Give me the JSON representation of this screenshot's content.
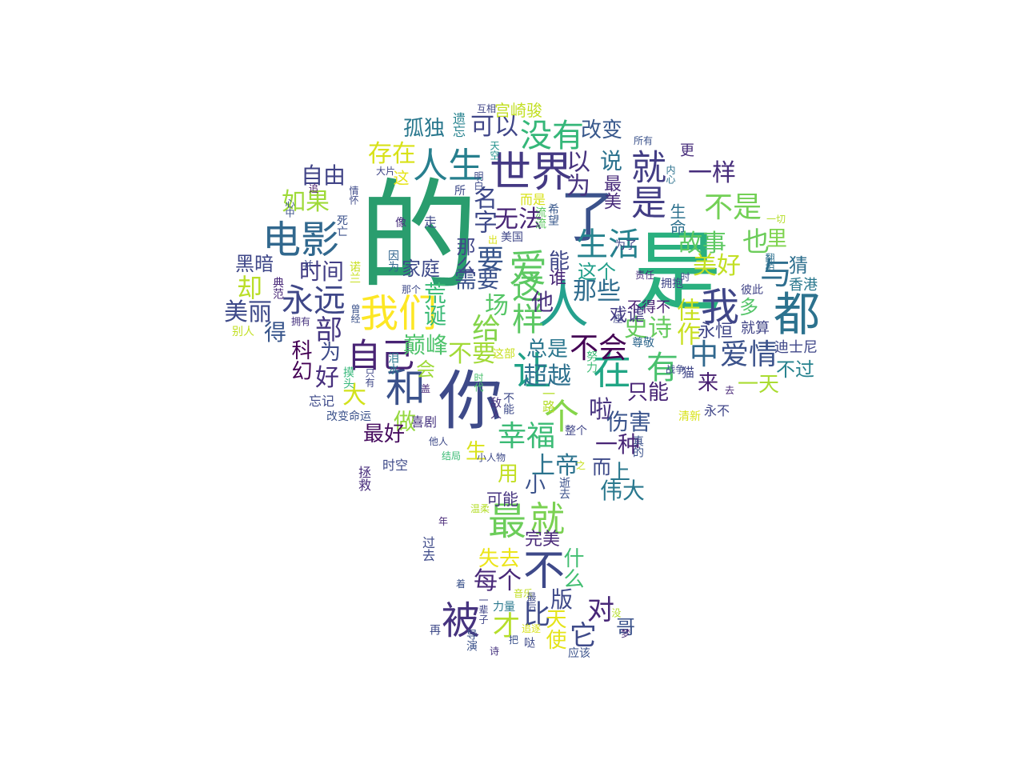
{
  "colors": {
    "background": "#ffffff"
  },
  "words": [
    {
      "t": "的",
      "c": "#2a9d6e"
    },
    {
      "t": "是",
      "c": "#2ab07f"
    },
    {
      "t": "你",
      "c": "#3e4a89"
    },
    {
      "t": "世界",
      "c": "#443983"
    },
    {
      "t": "人",
      "c": "#25a18e"
    },
    {
      "t": "我们",
      "c": "#fde725"
    },
    {
      "t": "电影",
      "c": "#31688e"
    },
    {
      "t": "都",
      "c": "#2c728e"
    },
    {
      "t": "我",
      "c": "#404688"
    },
    {
      "t": "在",
      "c": "#21a685"
    },
    {
      "t": "和",
      "c": "#3b528b"
    },
    {
      "t": "让",
      "c": "#1fa187"
    },
    {
      "t": "不",
      "c": "#3e4989"
    },
    {
      "t": "被",
      "c": "#46337f"
    },
    {
      "t": "人生",
      "c": "#277f8e"
    },
    {
      "t": "就是",
      "c": "#433e85"
    },
    {
      "t": "自己",
      "c": "#482374"
    },
    {
      "t": "永远",
      "c": "#3f4788"
    },
    {
      "t": "爱",
      "c": "#5ec962"
    },
    {
      "t": "最",
      "c": "#6ccd5a"
    },
    {
      "t": "没有",
      "c": "#35b779"
    },
    {
      "t": "了",
      "c": "#3b528b"
    },
    {
      "t": "生活",
      "c": "#26828e"
    },
    {
      "t": "与",
      "c": "#2e6e8e"
    },
    {
      "t": "这样",
      "c": "#5cc863"
    },
    {
      "t": "有",
      "c": "#4ac16d"
    },
    {
      "t": "不会",
      "c": "#440154"
    },
    {
      "t": "中",
      "c": "#31688e"
    },
    {
      "t": "爱情",
      "c": "#3b528b"
    },
    {
      "t": "幸福",
      "c": "#3bbb75"
    },
    {
      "t": "个",
      "c": "#85d54a"
    },
    {
      "t": "就",
      "c": "#7ad151"
    },
    {
      "t": "比",
      "c": "#3e4a89"
    },
    {
      "t": "对",
      "c": "#482878"
    },
    {
      "t": "它",
      "c": "#3e4a89"
    },
    {
      "t": "才",
      "c": "#b5de2b"
    },
    {
      "t": "每个",
      "c": "#482878"
    },
    {
      "t": "故事",
      "c": "#5ec962"
    },
    {
      "t": "也",
      "c": "#6ccd5a"
    },
    {
      "t": "不是",
      "c": "#73d056"
    },
    {
      "t": "一样",
      "c": "#472d7b"
    },
    {
      "t": "可以",
      "c": "#404688"
    },
    {
      "t": "改变",
      "c": "#38588c"
    },
    {
      "t": "孤独",
      "c": "#2a788e"
    },
    {
      "t": "存在",
      "c": "#d8e219"
    },
    {
      "t": "自由",
      "c": "#414487"
    },
    {
      "t": "如果",
      "c": "#9fda3a"
    },
    {
      "t": "无法",
      "c": "#482576"
    },
    {
      "t": "名字",
      "c": "#3e4989"
    },
    {
      "t": "以为",
      "c": "#46327e"
    },
    {
      "t": "说",
      "c": "#2c728e"
    },
    {
      "t": "要",
      "c": "#39568c"
    },
    {
      "t": "能",
      "c": "#3f4788"
    },
    {
      "t": "谁",
      "c": "#482677"
    },
    {
      "t": "他",
      "c": "#472e7c"
    },
    {
      "t": "那些",
      "c": "#2f6c8e"
    },
    {
      "t": "这个",
      "c": "#1f9e89"
    },
    {
      "t": "时间",
      "c": "#433e85"
    },
    {
      "t": "黑暗",
      "c": "#3f4788"
    },
    {
      "t": "家庭",
      "c": "#3e4a89"
    },
    {
      "t": "需要",
      "c": "#3b528b"
    },
    {
      "t": "那么",
      "c": "#404688"
    },
    {
      "t": "美好",
      "c": "#c2df23"
    },
    {
      "t": "猜",
      "c": "#2e6f8e"
    },
    {
      "t": "美丽",
      "c": "#3e4a89"
    },
    {
      "t": "却",
      "c": "#bade28"
    },
    {
      "t": "部",
      "c": "#453882"
    },
    {
      "t": "场",
      "c": "#56c667"
    },
    {
      "t": "给",
      "c": "#84d44b"
    },
    {
      "t": "史诗",
      "c": "#65cb5e"
    },
    {
      "t": "佳作",
      "c": "#c8e020"
    },
    {
      "t": "永恒",
      "c": "#404688"
    },
    {
      "t": "巅峰",
      "c": "#4ec36b"
    },
    {
      "t": "荒诞",
      "c": "#3aba76"
    },
    {
      "t": "不要",
      "c": "#a2da37"
    },
    {
      "t": "总是",
      "c": "#2a768e"
    },
    {
      "t": "戏谑",
      "c": "#443a83"
    },
    {
      "t": "不得不",
      "c": "#482173"
    },
    {
      "t": "为",
      "c": "#3e4c8a"
    },
    {
      "t": "好",
      "c": "#472f7d"
    },
    {
      "t": "大",
      "c": "#d2e21b"
    },
    {
      "t": "科幻",
      "c": "#440154"
    },
    {
      "t": "得",
      "c": "#39568c"
    },
    {
      "t": "超越",
      "c": "#2d708e"
    },
    {
      "t": "来",
      "c": "#482071"
    },
    {
      "t": "一天",
      "c": "#aadc32"
    },
    {
      "t": "不过",
      "c": "#26828e"
    },
    {
      "t": "只能",
      "c": "#482475"
    },
    {
      "t": "啦",
      "c": "#46327e"
    },
    {
      "t": "伤害",
      "c": "#3a548c"
    },
    {
      "t": "一种",
      "c": "#482576"
    },
    {
      "t": "上帝",
      "c": "#2c738e"
    },
    {
      "t": "伟大",
      "c": "#2a788e"
    },
    {
      "t": "生",
      "c": "#dae319"
    },
    {
      "t": "做",
      "c": "#95d840"
    },
    {
      "t": "最好",
      "c": "#460b5e"
    },
    {
      "t": "失去",
      "c": "#ece51b"
    },
    {
      "t": "完美",
      "c": "#482878"
    },
    {
      "t": "什么",
      "c": "#42be71"
    },
    {
      "t": "版",
      "c": "#3e4989"
    },
    {
      "t": "天使",
      "c": "#e5e419"
    },
    {
      "t": "哥",
      "c": "#3b528b"
    },
    {
      "t": "可能",
      "c": "#46337f"
    },
    {
      "t": "多",
      "c": "#54c568"
    },
    {
      "t": "就算",
      "c": "#414487"
    },
    {
      "t": "迪士尼",
      "c": "#3f4788"
    },
    {
      "t": "香港",
      "c": "#2a788e"
    },
    {
      "t": "里",
      "c": "#7fd34e"
    },
    {
      "t": "生命",
      "c": "#2d718e"
    },
    {
      "t": "最美",
      "c": "#472a7a"
    },
    {
      "t": "宫崎骏",
      "c": "#c2df23"
    },
    {
      "t": "天空",
      "c": "#21918c"
    },
    {
      "t": "所有",
      "c": "#3b528b"
    },
    {
      "t": "更",
      "c": "#472d7b"
    },
    {
      "t": "内心",
      "c": "#2c728e"
    },
    {
      "t": "一切",
      "c": "#b5de2b"
    },
    {
      "t": "互相",
      "c": "#404688"
    },
    {
      "t": "遗忘",
      "c": "#26828e"
    },
    {
      "t": "这",
      "c": "#e5e419"
    },
    {
      "t": "明白",
      "c": "#3e4a89"
    },
    {
      "t": "希望",
      "c": "#38588c"
    },
    {
      "t": "而是",
      "c": "#d8e219"
    },
    {
      "t": "走",
      "c": "#3e4989"
    },
    {
      "t": "像",
      "c": "#472f7d"
    },
    {
      "t": "美国",
      "c": "#3f4788"
    },
    {
      "t": "流流",
      "c": "#5ec962"
    },
    {
      "t": "因为",
      "c": "#32658e"
    },
    {
      "t": "诺兰",
      "c": "#c8e020"
    },
    {
      "t": "那个",
      "c": "#3e4a89"
    },
    {
      "t": "典范",
      "c": "#482878"
    },
    {
      "t": "并",
      "c": "#3e4989"
    },
    {
      "t": "死亡",
      "c": "#3b528b"
    },
    {
      "t": "心中",
      "c": "#3b528b"
    },
    {
      "t": "追",
      "c": "#48186a"
    },
    {
      "t": "拥抱",
      "c": "#404688"
    },
    {
      "t": "彼此",
      "c": "#414487"
    },
    {
      "t": "责任",
      "c": "#472d7b"
    },
    {
      "t": "翻拍",
      "c": "#2d708e"
    },
    {
      "t": "为了",
      "c": "#404688"
    },
    {
      "t": "拥有",
      "c": "#46337f"
    },
    {
      "t": "曾经",
      "c": "#3b528b"
    },
    {
      "t": "别人",
      "c": "#c2df23"
    },
    {
      "t": "摸头",
      "c": "#35b779"
    },
    {
      "t": "只有",
      "c": "#3f4788"
    },
    {
      "t": "泪水",
      "c": "#2a788e"
    },
    {
      "t": "盖",
      "c": "#482878"
    },
    {
      "t": "会",
      "c": "#9fda3a"
    },
    {
      "t": "这部",
      "c": "#c8e020"
    },
    {
      "t": "时代",
      "c": "#4ac16d"
    },
    {
      "t": "忘记",
      "c": "#3e4a89"
    },
    {
      "t": "改变命运",
      "c": "#3b528b"
    },
    {
      "t": "尊敬",
      "c": "#31688e"
    },
    {
      "t": "战争",
      "c": "#3e4a89"
    },
    {
      "t": "猫",
      "c": "#404688"
    },
    {
      "t": "去",
      "c": "#482878"
    },
    {
      "t": "永不",
      "c": "#404688"
    },
    {
      "t": "清新",
      "c": "#d8e219"
    },
    {
      "t": "敌人",
      "c": "#46337f"
    },
    {
      "t": "一路",
      "c": "#b5de2b"
    },
    {
      "t": "喜剧",
      "c": "#46337f"
    },
    {
      "t": "他人",
      "c": "#3e4a89"
    },
    {
      "t": "结局",
      "c": "#3bbb75"
    },
    {
      "t": "小人物",
      "c": "#3e4a89"
    },
    {
      "t": "整个",
      "c": "#404688"
    },
    {
      "t": "真的",
      "c": "#3b528b"
    },
    {
      "t": "拯救",
      "c": "#472d7b"
    },
    {
      "t": "时空",
      "c": "#3e4a89"
    },
    {
      "t": "温柔",
      "c": "#b5de2b"
    },
    {
      "t": "逝去",
      "c": "#3b528b"
    },
    {
      "t": "年",
      "c": "#482878"
    },
    {
      "t": "过去",
      "c": "#3e4a89"
    },
    {
      "t": "着",
      "c": "#3b528b"
    },
    {
      "t": "一辈子",
      "c": "#404688"
    },
    {
      "t": "再",
      "c": "#3e4a89"
    },
    {
      "t": "导演",
      "c": "#3b528b"
    },
    {
      "t": "诗",
      "c": "#46337f"
    },
    {
      "t": "追逐",
      "c": "#d8e219"
    },
    {
      "t": "力量",
      "c": "#2a788e"
    },
    {
      "t": "哒",
      "c": "#3e4a89"
    },
    {
      "t": "应该",
      "c": "#3b528b"
    },
    {
      "t": "梦",
      "c": "#482878"
    },
    {
      "t": "音乐",
      "c": "#c2df23"
    },
    {
      "t": "没",
      "c": "#b5de2b"
    },
    {
      "t": "最后",
      "c": "#3e4a89"
    },
    {
      "t": "把",
      "c": "#3b528b"
    },
    {
      "t": "而",
      "c": "#3e4a89"
    },
    {
      "t": "上",
      "c": "#2a788e"
    },
    {
      "t": "用",
      "c": "#c2df23"
    },
    {
      "t": "小",
      "c": "#3b528b"
    },
    {
      "t": "之",
      "c": "#c8e020"
    },
    {
      "t": "一座",
      "c": "#404688"
    },
    {
      "t": "时",
      "c": "#3e4a89"
    },
    {
      "t": "所",
      "c": "#3e4a89"
    },
    {
      "t": "努力",
      "c": "#3bbb75"
    },
    {
      "t": "不能",
      "c": "#3e4a89"
    },
    {
      "t": "大片",
      "c": "#404688"
    },
    {
      "t": "情怀",
      "c": "#3e4a89"
    },
    {
      "t": "出",
      "c": "#d8e219"
    }
  ]
}
